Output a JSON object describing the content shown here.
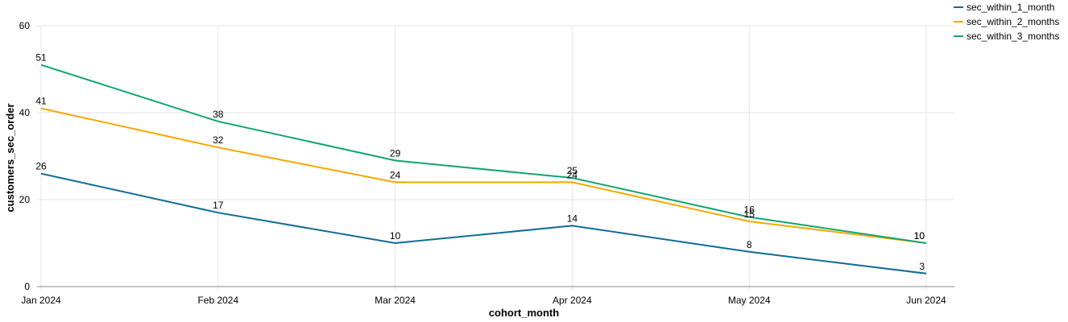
{
  "chart_data": {
    "type": "line",
    "categories": [
      "Jan 2024",
      "Feb 2024",
      "Mar 2024",
      "Apr 2024",
      "May 2024",
      "Jun 2024"
    ],
    "series": [
      {
        "name": "sec_within_1_month",
        "color": "#0f6c96",
        "values": [
          26,
          17,
          10,
          14,
          8,
          3
        ]
      },
      {
        "name": "sec_within_2_months",
        "color": "#f6a800",
        "values": [
          41,
          32,
          24,
          24,
          15,
          10
        ]
      },
      {
        "name": "sec_within_3_months",
        "color": "#10a56f",
        "values": [
          51,
          38,
          29,
          25,
          16,
          10
        ]
      }
    ],
    "xlabel": "cohort_month",
    "ylabel": "customers_sec_order",
    "ylim": [
      0,
      60
    ],
    "yticks": [
      0,
      20,
      40,
      60
    ],
    "grid": true,
    "legend_position": "top-right"
  }
}
